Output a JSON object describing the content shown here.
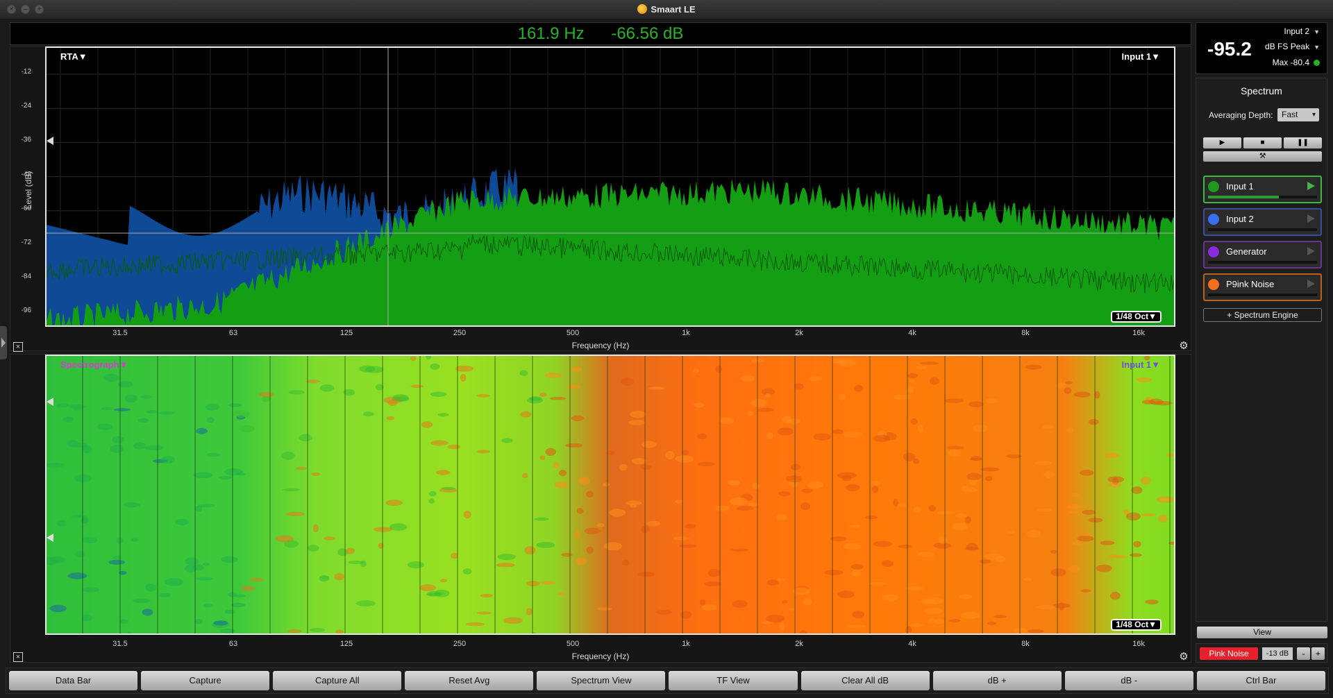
{
  "window": {
    "title": "Smaart LE"
  },
  "readout": {
    "frequency": "161.9 Hz",
    "level": "-66.56 dB"
  },
  "rta": {
    "mode_label": "RTA▼",
    "input_label": "Input 1▼",
    "resolution_label": "1/48 Oct▼",
    "y_axis_title": "Level (dB)",
    "y_ticks": [
      "-12",
      "-24",
      "-36",
      "-48",
      "-60",
      "-72",
      "-84",
      "-96"
    ],
    "x_ticks": [
      "31.5",
      "63",
      "125",
      "250",
      "500",
      "1k",
      "2k",
      "4k",
      "8k",
      "16k"
    ],
    "x_axis_title": "Frequency (Hz)"
  },
  "spectrograph": {
    "mode_label": "Spectrograph▼",
    "input_label": "Input 1▼",
    "resolution_label": "1/48 Oct▼",
    "x_ticks": [
      "31.5",
      "63",
      "125",
      "250",
      "500",
      "1k",
      "2k",
      "4k",
      "8k",
      "16k"
    ],
    "x_axis_title": "Frequency (Hz)"
  },
  "meter": {
    "value": "-95.2",
    "input": "Input 2",
    "scale": "dB FS Peak",
    "max": "Max -80.4"
  },
  "control": {
    "title": "Spectrum",
    "averaging_label": "Averaging Depth:",
    "averaging_value": "Fast",
    "transport": {
      "play": "▶",
      "stop": "■",
      "pause": "❚❚"
    },
    "tools": "⚒",
    "sources": [
      {
        "name": "Input 1",
        "color": "#1f9a1f",
        "border": "#3fb83f",
        "level": 0.65
      },
      {
        "name": "Input 2",
        "color": "#3a6ef0",
        "border": "#3c4d9a",
        "level": 0
      },
      {
        "name": "Generator",
        "color": "#8b2be0",
        "border": "#6a3590",
        "level": 0
      },
      {
        "name": "P9ink Noise",
        "color": "#f0701c",
        "border": "#b9621c",
        "level": 0
      }
    ],
    "add_engine": "+ Spectrum Engine"
  },
  "view_label": "View",
  "noise": {
    "button": "Pink Noise",
    "level": "-13 dB",
    "minus": "-",
    "plus": "+"
  },
  "bottom_buttons": [
    "Data Bar",
    "Capture",
    "Capture All",
    "Reset Avg",
    "Spectrum View",
    "TF View",
    "Clear All dB",
    "dB +",
    "dB -",
    "Ctrl Bar"
  ],
  "colors": {
    "rta_green": "#139e13",
    "rta_blue": "#0f4a96",
    "readout": "#2bb22b"
  }
}
